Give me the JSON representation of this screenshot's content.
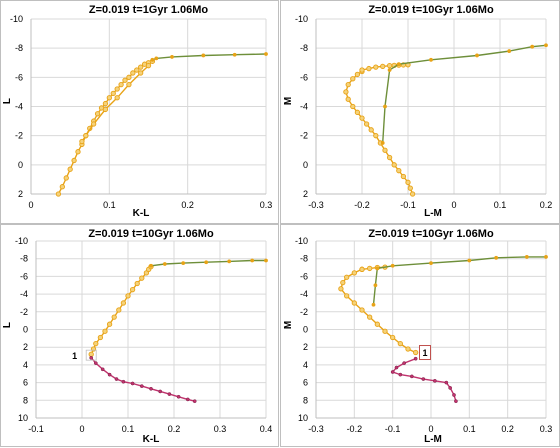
{
  "chart_data": [
    {
      "type": "scatter",
      "title": "Z=0.019  t=1Gyr  1.06Mo",
      "xlabel": "K-L",
      "ylabel": "L",
      "xlim": [
        0,
        0.3
      ],
      "ylim": [
        2,
        -10
      ],
      "xticks": [
        "0",
        "0.1",
        "0.2",
        "0.3"
      ],
      "yticks": [
        "-10",
        "-8",
        "-6",
        "-4",
        "-2",
        "0",
        "2"
      ],
      "grid": true,
      "series": [
        {
          "color": "#e8a317",
          "x": [
            0.035,
            0.04,
            0.045,
            0.05,
            0.055,
            0.06,
            0.065,
            0.07,
            0.075,
            0.08,
            0.085,
            0.09,
            0.095,
            0.1,
            0.105,
            0.11,
            0.115,
            0.12,
            0.125,
            0.13,
            0.135,
            0.14,
            0.145,
            0.15,
            0.155
          ],
          "y": [
            2.0,
            1.5,
            0.9,
            0.3,
            -0.3,
            -0.9,
            -1.4,
            -2.0,
            -2.5,
            -3.0,
            -3.5,
            -3.9,
            -4.2,
            -4.6,
            -4.9,
            -5.2,
            -5.5,
            -5.8,
            -6.0,
            -6.3,
            -6.5,
            -6.7,
            -6.9,
            -7.0,
            -7.1
          ]
        },
        {
          "color": "#e8a317",
          "x": [
            0.15,
            0.14,
            0.125,
            0.11,
            0.095,
            0.08,
            0.07,
            0.065
          ],
          "y": [
            -6.8,
            -6.3,
            -5.5,
            -4.6,
            -3.8,
            -2.8,
            -2.0,
            -1.6
          ]
        },
        {
          "color": "#6e8f3a",
          "x": [
            0.155,
            0.16,
            0.18,
            0.22,
            0.26,
            0.3
          ],
          "y": [
            -7.2,
            -7.3,
            -7.4,
            -7.5,
            -7.55,
            -7.6
          ]
        }
      ]
    },
    {
      "type": "scatter",
      "title": "Z=0.019  t=10Gyr  1.06Mo",
      "xlabel": "L-M",
      "ylabel": "M",
      "xlim": [
        -0.3,
        0.2
      ],
      "ylim": [
        2,
        -10
      ],
      "xticks": [
        "-0.3",
        "-0.2",
        "-0.1",
        "0",
        "0.1",
        "0.2"
      ],
      "yticks": [
        "-10",
        "-8",
        "-6",
        "-4",
        "-2",
        "0",
        "2"
      ],
      "grid": true,
      "series": [
        {
          "color": "#e8a317",
          "x": [
            -0.09,
            -0.095,
            -0.1,
            -0.11,
            -0.12,
            -0.13,
            -0.14,
            -0.15,
            -0.16,
            -0.17,
            -0.18,
            -0.19,
            -0.2,
            -0.21,
            -0.22,
            -0.23,
            -0.235,
            -0.23,
            -0.22,
            -0.21,
            -0.2
          ],
          "y": [
            2.0,
            1.6,
            1.2,
            0.8,
            0.4,
            0.0,
            -0.5,
            -1.0,
            -1.5,
            -2.0,
            -2.4,
            -2.8,
            -3.2,
            -3.6,
            -4.0,
            -4.5,
            -5.0,
            -5.5,
            -5.9,
            -6.2,
            -6.4
          ]
        },
        {
          "color": "#e8a317",
          "x": [
            -0.2,
            -0.185,
            -0.17,
            -0.155,
            -0.14,
            -0.13,
            -0.12,
            -0.11,
            -0.1
          ],
          "y": [
            -6.5,
            -6.6,
            -6.7,
            -6.75,
            -6.8,
            -6.82,
            -6.84,
            -6.85,
            -6.86
          ]
        },
        {
          "color": "#6e8f3a",
          "x": [
            -0.155,
            -0.15,
            -0.14,
            -0.12,
            -0.05,
            0.05,
            0.12,
            0.17,
            0.2
          ],
          "y": [
            -1.5,
            -4.0,
            -6.5,
            -6.9,
            -7.2,
            -7.5,
            -7.8,
            -8.1,
            -8.2
          ]
        }
      ]
    },
    {
      "type": "scatter",
      "title": "Z=0.019  t=10Gyr  1.06Mo",
      "xlabel": "K-L",
      "ylabel": "L",
      "xlim": [
        -0.1,
        0.4
      ],
      "ylim": [
        10,
        -10
      ],
      "xticks": [
        "-0.1",
        "0",
        "0.1",
        "0.2",
        "0.3",
        "0.4"
      ],
      "yticks": [
        "-10",
        "-8",
        "-6",
        "-4",
        "-2",
        "0",
        "2",
        "4",
        "6",
        "8",
        "10"
      ],
      "grid": true,
      "annotation": "1",
      "series": [
        {
          "color": "#e8a317",
          "x": [
            0.02,
            0.025,
            0.03,
            0.04,
            0.05,
            0.06,
            0.07,
            0.08,
            0.09,
            0.1,
            0.11,
            0.12,
            0.13,
            0.14,
            0.145,
            0.15
          ],
          "y": [
            2.8,
            2.2,
            1.6,
            0.9,
            0.2,
            -0.6,
            -1.4,
            -2.2,
            -3.0,
            -3.8,
            -4.5,
            -5.2,
            -5.8,
            -6.4,
            -6.8,
            -7.1
          ]
        },
        {
          "color": "#6e8f3a",
          "x": [
            0.15,
            0.18,
            0.22,
            0.27,
            0.32,
            0.37,
            0.4
          ],
          "y": [
            -7.2,
            -7.4,
            -7.5,
            -7.6,
            -7.7,
            -7.8,
            -7.8
          ]
        },
        {
          "color": "#c0336d",
          "x": [
            0.02,
            0.03,
            0.045,
            0.06,
            0.075,
            0.09,
            0.11,
            0.13,
            0.15,
            0.17,
            0.19,
            0.21,
            0.23,
            0.245
          ],
          "y": [
            3.2,
            3.8,
            4.5,
            5.1,
            5.6,
            5.9,
            6.1,
            6.4,
            6.7,
            7.0,
            7.3,
            7.6,
            7.9,
            8.1
          ]
        }
      ]
    },
    {
      "type": "scatter",
      "title": "Z=0.019  t=10Gyr  1.06Mo",
      "xlabel": "L-M",
      "ylabel": "M",
      "xlim": [
        -0.3,
        0.3
      ],
      "ylim": [
        10,
        -10
      ],
      "xticks": [
        "-0.3",
        "-0.2",
        "-0.1",
        "0",
        "0.1",
        "0.2",
        "0.3"
      ],
      "yticks": [
        "-10",
        "-8",
        "-6",
        "-4",
        "-2",
        "0",
        "2",
        "4",
        "6",
        "8",
        "10"
      ],
      "grid": true,
      "annotation": "1",
      "series": [
        {
          "color": "#e8a317",
          "x": [
            -0.04,
            -0.06,
            -0.08,
            -0.1,
            -0.12,
            -0.14,
            -0.16,
            -0.18,
            -0.2,
            -0.22,
            -0.235,
            -0.23,
            -0.22,
            -0.2,
            -0.18
          ],
          "y": [
            2.6,
            2.2,
            1.6,
            0.9,
            0.2,
            -0.6,
            -1.4,
            -2.2,
            -3.0,
            -3.8,
            -4.6,
            -5.3,
            -5.9,
            -6.4,
            -6.8
          ]
        },
        {
          "color": "#e8a317",
          "x": [
            -0.18,
            -0.16,
            -0.14,
            -0.12
          ],
          "y": [
            -6.8,
            -6.9,
            -7.0,
            -7.05
          ]
        },
        {
          "color": "#6e8f3a",
          "x": [
            -0.15,
            -0.145,
            -0.14,
            -0.1,
            0.0,
            0.1,
            0.17,
            0.25,
            0.3
          ],
          "y": [
            -2.8,
            -5.0,
            -6.9,
            -7.2,
            -7.5,
            -7.8,
            -8.1,
            -8.2,
            -8.2
          ]
        },
        {
          "color": "#c0336d",
          "x": [
            -0.04,
            -0.07,
            -0.09,
            -0.1,
            -0.08,
            -0.05,
            -0.02,
            0.01,
            0.04,
            0.05,
            0.06,
            0.065
          ],
          "y": [
            3.3,
            3.8,
            4.3,
            4.8,
            5.1,
            5.3,
            5.6,
            5.8,
            6.0,
            6.6,
            7.4,
            8.1
          ]
        }
      ]
    }
  ]
}
